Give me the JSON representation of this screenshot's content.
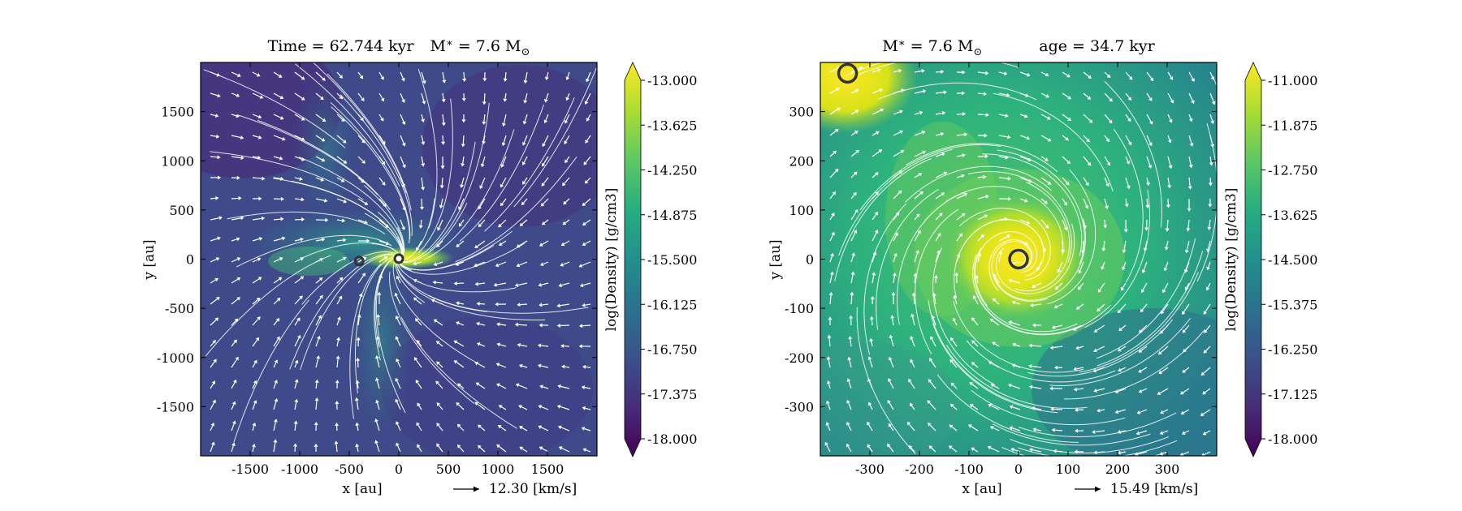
{
  "chart_data": [
    {
      "type": "heatmap",
      "title_parts": [
        "Time = 62.744 kyr",
        "M",
        "∗",
        " = 7.6 M",
        "⊙"
      ],
      "xlabel": "x [au]",
      "ylabel": "y [au]",
      "xlim": [
        -2000,
        2000
      ],
      "ylim": [
        -2000,
        2000
      ],
      "xticks": [
        -1500,
        -1000,
        -500,
        0,
        500,
        1000,
        1500
      ],
      "yticks": [
        -1500,
        -1000,
        -500,
        0,
        500,
        1000,
        1500
      ],
      "velocity_key": "12.30 [km/s]",
      "colorbar": {
        "label": "log(Density) [g/cm3]",
        "min": -18.0,
        "max": -13.0,
        "ticks": [
          "-13.000",
          "-13.625",
          "-14.250",
          "-14.875",
          "-15.500",
          "-16.125",
          "-16.750",
          "-17.375",
          "-18.000"
        ]
      },
      "sinks": [
        {
          "x": -400,
          "y": -20
        },
        {
          "x": 0,
          "y": 5
        }
      ],
      "colormap": "viridis",
      "overlays": [
        "velocity streamlines",
        "velocity quiver arrows"
      ]
    },
    {
      "type": "heatmap",
      "title_parts": [
        "M",
        "∗",
        " = 7.6 M",
        "⊙",
        "age = 34.7 kyr"
      ],
      "xlabel": "x [au]",
      "ylabel": "y [au]",
      "xlim": [
        -400,
        400
      ],
      "ylim": [
        -400,
        400
      ],
      "xticks": [
        -300,
        -200,
        -100,
        0,
        100,
        200,
        300
      ],
      "yticks": [
        -300,
        -200,
        -100,
        0,
        100,
        200,
        300
      ],
      "velocity_key": "15.49 [km/s]",
      "colorbar": {
        "label": "log(Density) [g/cm3]",
        "min": -18.0,
        "max": -11.0,
        "ticks": [
          "-11.000",
          "-11.875",
          "-12.750",
          "-13.625",
          "-14.500",
          "-15.375",
          "-16.250",
          "-17.125",
          "-18.000"
        ]
      },
      "sinks": [
        {
          "x": -345,
          "y": 378
        },
        {
          "x": 0,
          "y": 0
        }
      ],
      "colormap": "viridis",
      "overlays": [
        "velocity streamlines",
        "velocity quiver arrows"
      ]
    }
  ]
}
